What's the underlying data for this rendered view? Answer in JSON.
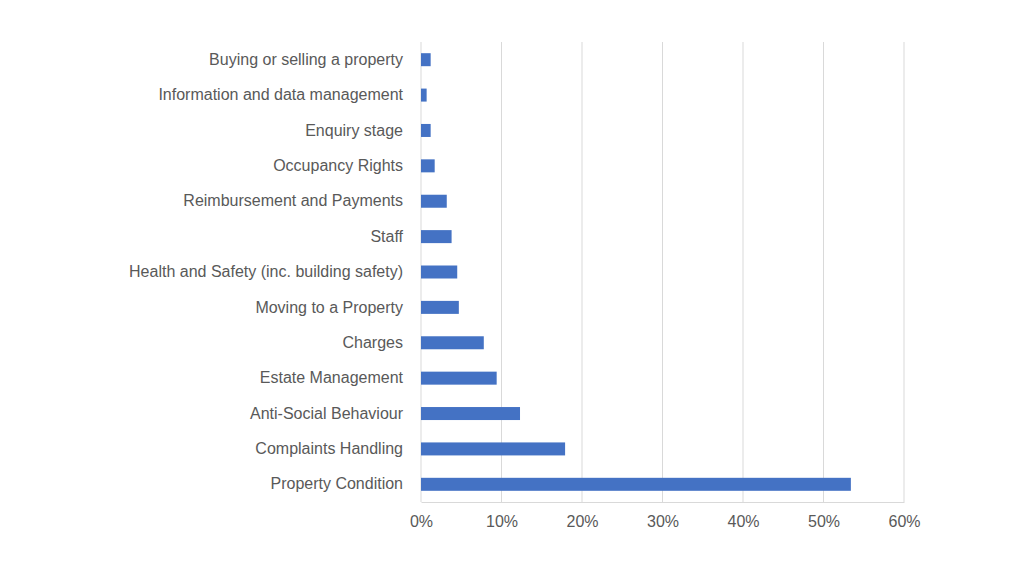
{
  "chart_data": {
    "type": "bar",
    "orientation": "horizontal",
    "categories": [
      "Buying or selling a property",
      "Information and data management",
      "Enquiry stage",
      "Occupancy Rights",
      "Reimbursement and Payments",
      "Staff",
      "Health and Safety (inc. building safety)",
      "Moving to a Property",
      "Charges",
      "Estate Management",
      "Anti-Social Behaviour",
      "Complaints Handling",
      "Property Condition"
    ],
    "values": [
      1.2,
      0.7,
      1.2,
      1.7,
      3.2,
      3.8,
      4.5,
      4.7,
      7.8,
      9.4,
      12.3,
      17.9,
      53.4
    ],
    "color": "#4472c4",
    "xlim": [
      0,
      60
    ],
    "xticks": [
      {
        "value": 0,
        "label": "0%"
      },
      {
        "value": 10,
        "label": "10%"
      },
      {
        "value": 20,
        "label": "20%"
      },
      {
        "value": 30,
        "label": "30%"
      },
      {
        "value": 40,
        "label": "40%"
      },
      {
        "value": 50,
        "label": "50%"
      },
      {
        "value": 60,
        "label": "60%"
      }
    ],
    "grid": true
  }
}
